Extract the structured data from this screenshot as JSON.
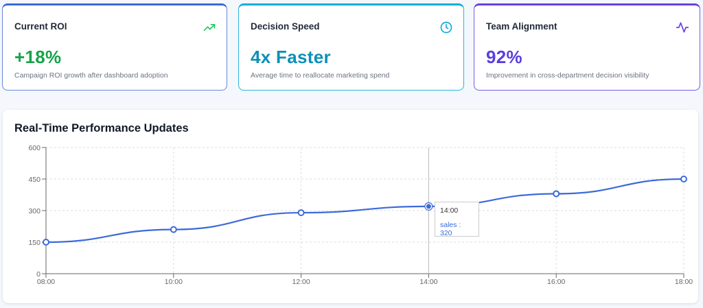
{
  "cards": [
    {
      "id": "roi",
      "title": "Current ROI",
      "value": "+18%",
      "description": "Campaign ROI growth after dashboard adoption",
      "value_color": "#16a34a",
      "icon": "trending-up-icon",
      "icon_color": "#22c55e"
    },
    {
      "id": "speed",
      "title": "Decision Speed",
      "value": "4x Faster",
      "description": "Average time to reallocate marketing spend",
      "value_color": "#0e8fb8",
      "icon": "clock-icon",
      "icon_color": "#14a8d8"
    },
    {
      "id": "team",
      "title": "Team Alignment",
      "value": "92%",
      "description": "Improvement in cross-department decision visibility",
      "value_color": "#5b3ee0",
      "icon": "activity-icon",
      "icon_color": "#6a3fe0"
    }
  ],
  "panel": {
    "title": "Real-Time Performance Updates"
  },
  "tooltip": {
    "label": "14:00",
    "value_text": "sales : 320"
  },
  "chart_data": {
    "type": "line",
    "categories": [
      "08:00",
      "10:00",
      "12:00",
      "14:00",
      "16:00",
      "18:00"
    ],
    "series": [
      {
        "name": "sales",
        "values": [
          150,
          210,
          290,
          320,
          380,
          450
        ],
        "color": "#3b6ad9"
      }
    ],
    "ylim": [
      0,
      600
    ],
    "yticks": [
      0,
      150,
      300,
      450,
      600
    ],
    "grid": true,
    "highlighted_category": "14:00"
  }
}
